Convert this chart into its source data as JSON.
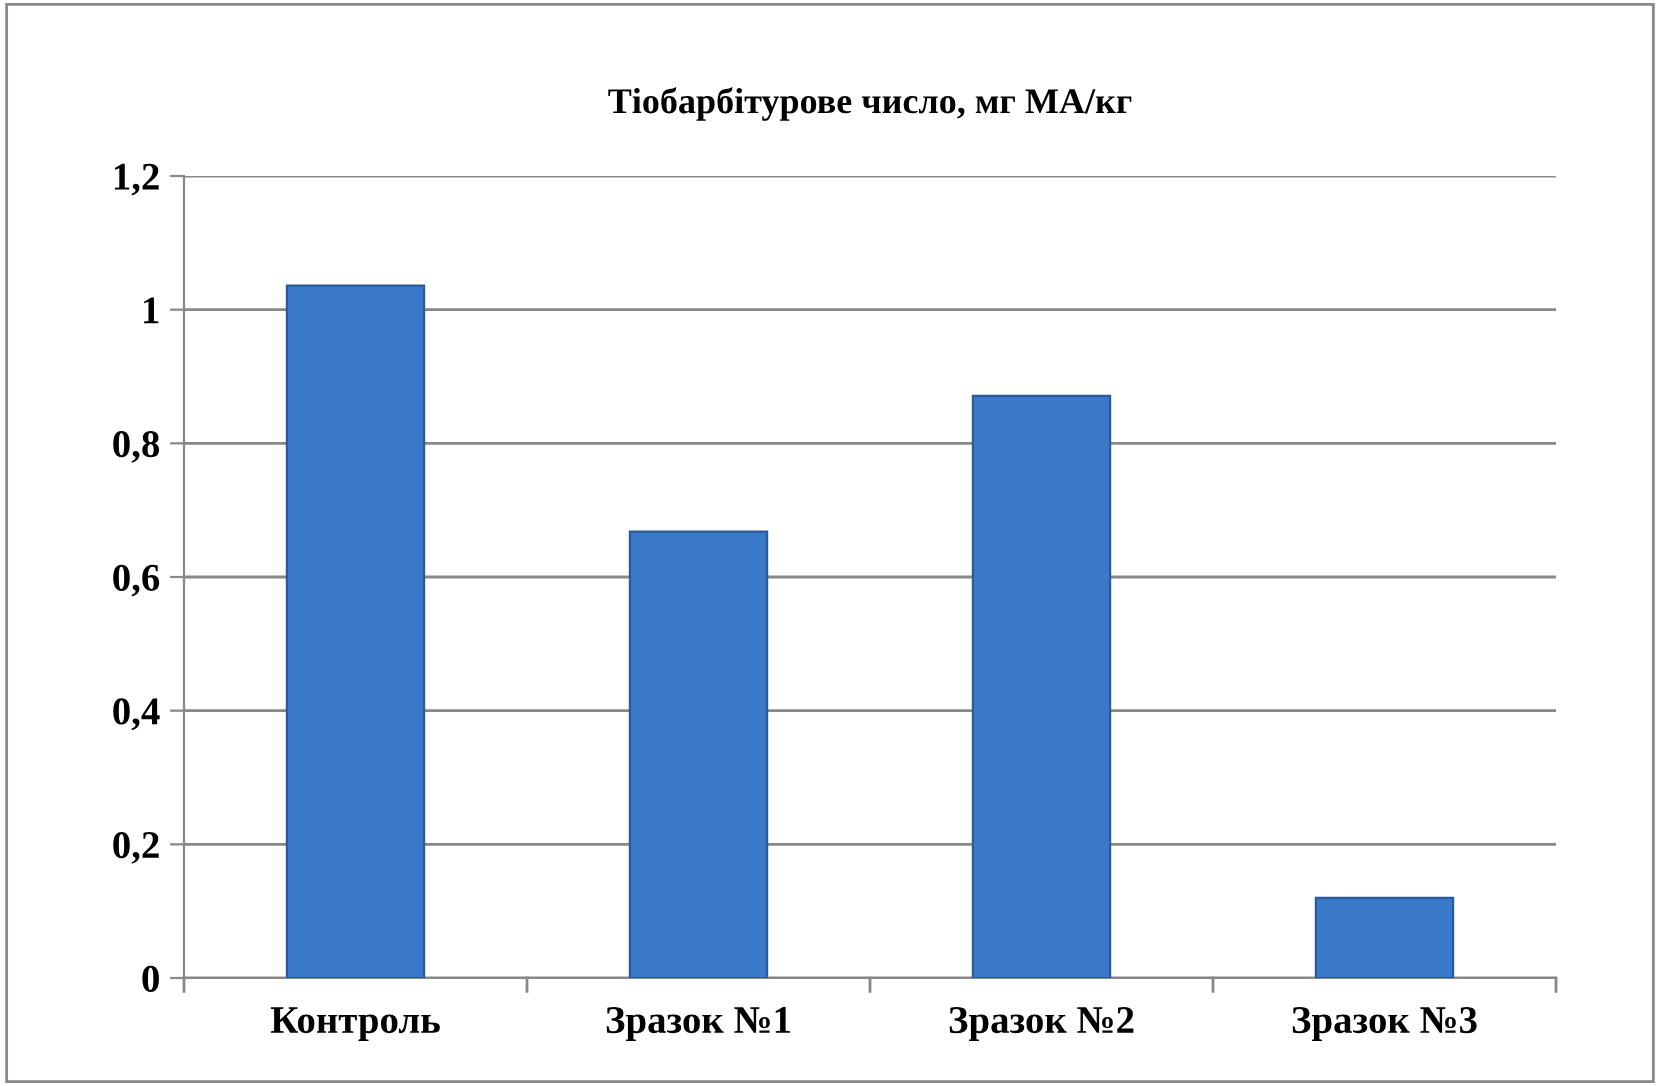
{
  "chart_data": {
    "type": "bar",
    "title": "Тіобарбітурове число, мг МА/кг",
    "categories": [
      "Контроль",
      "Зразок №1",
      "Зразок №2",
      "Зразок №3"
    ],
    "values": [
      1.036,
      0.668,
      0.871,
      0.12
    ],
    "color": "#3a78c9",
    "ylim": [
      0,
      1.2
    ],
    "yticks": [
      {
        "value": 0,
        "label": "0"
      },
      {
        "value": 0.2,
        "label": "0,2"
      },
      {
        "value": 0.4,
        "label": "0,4"
      },
      {
        "value": 0.6,
        "label": "0,6"
      },
      {
        "value": 0.8,
        "label": "0,8"
      },
      {
        "value": 1,
        "label": "1"
      },
      {
        "value": 1.2,
        "label": "1,2"
      }
    ],
    "grid": "y",
    "legend": false
  }
}
